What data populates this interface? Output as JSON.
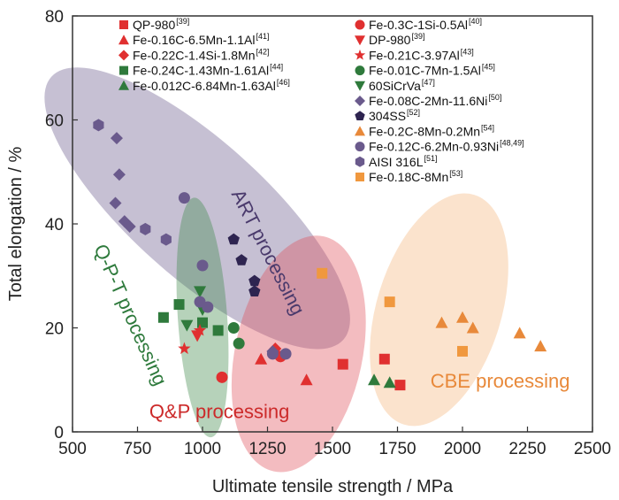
{
  "chart_data": {
    "type": "scatter",
    "title": "",
    "xlabel": "Ultimate tensile strength / MPa",
    "ylabel": "Total elongation / %",
    "xlim": [
      500,
      2500
    ],
    "ylim": [
      0,
      80
    ],
    "xticks": [
      500,
      750,
      1000,
      1250,
      1500,
      1750,
      2000,
      2250,
      2500
    ],
    "yticks": [
      0,
      20,
      40,
      60,
      80
    ],
    "grid": false,
    "legend_position": "top-center",
    "regions": [
      {
        "name": "ART processing",
        "color": "#6a5a8c",
        "text_color": "#4a3a6c",
        "cx": 980,
        "cy": 43,
        "rx": 520,
        "ry": 9,
        "angle_deg": 48,
        "label_x": 1230,
        "label_y": 34,
        "label_angle_deg": 63
      },
      {
        "name": "Q-P-T processing",
        "color": "#3f8a4a",
        "text_color": "#2e7a3c",
        "cx": 1000,
        "cy": 22,
        "rx": 190,
        "ry": 5.5,
        "angle_deg": 4,
        "label_x": 700,
        "label_y": 22,
        "label_angle_deg": 66
      },
      {
        "name": "Q&P processing",
        "color": "#e0505a",
        "text_color": "#cc2a2a",
        "cx": 1370,
        "cy": 15,
        "rx": 490,
        "ry": 5.5,
        "angle_deg": -12,
        "label_x": 1065,
        "label_y": 2.6,
        "label_angle_deg": 0
      },
      {
        "name": "CBE processing",
        "color": "#f4b67c",
        "text_color": "#e8893a",
        "cx": 1910,
        "cy": 23.5,
        "rx": 480,
        "ry": 5.5,
        "angle_deg": -17,
        "label_x": 2145,
        "label_y": 8.5,
        "label_angle_deg": 0
      }
    ],
    "series": [
      {
        "name": "QP-980",
        "ref": "[39]",
        "marker": "square",
        "color": "#e03030",
        "points": [
          [
            1540,
            13
          ],
          [
            1700,
            14
          ],
          [
            1760,
            9
          ]
        ]
      },
      {
        "name": "Fe-0.16C-6.5Mn-1.1Al",
        "ref": "[41]",
        "marker": "triangle",
        "color": "#e03030",
        "points": [
          [
            1225,
            14
          ],
          [
            1400,
            10
          ]
        ]
      },
      {
        "name": "Fe-0.22C-1.4Si-1.8Mn",
        "ref": "[42]",
        "marker": "diamond",
        "color": "#e03030",
        "points": [
          [
            1280,
            16
          ]
        ]
      },
      {
        "name": "Fe-0.24C-1.43Mn-1.61Al",
        "ref": "[44]",
        "marker": "square",
        "color": "#2f7a3c",
        "points": [
          [
            850,
            22
          ],
          [
            910,
            24.5
          ],
          [
            1000,
            21
          ],
          [
            1060,
            19.5
          ]
        ]
      },
      {
        "name": "Fe-0.012C-6.84Mn-1.63Al",
        "ref": "[46]",
        "marker": "triangle",
        "color": "#2f7a3c",
        "points": [
          [
            1660,
            10
          ],
          [
            1720,
            9.5
          ]
        ]
      },
      {
        "name": "Fe-0.3C-1Si-0.5Al",
        "ref": "[40]",
        "marker": "circle",
        "color": "#e03030",
        "points": [
          [
            1075,
            10.5
          ],
          [
            1300,
            14.5
          ]
        ]
      },
      {
        "name": "DP-980",
        "ref": "[39]",
        "marker": "tri-down",
        "color": "#e03030",
        "points": [
          [
            980,
            18.5
          ]
        ]
      },
      {
        "name": "Fe-0.21C-3.97Al",
        "ref": "[43]",
        "marker": "star",
        "color": "#e03030",
        "points": [
          [
            930,
            16
          ],
          [
            990,
            19.5
          ]
        ]
      },
      {
        "name": "Fe-0.01C-7Mn-1.5Al",
        "ref": "[45]",
        "marker": "circle",
        "color": "#2f7a3c",
        "points": [
          [
            1120,
            20
          ],
          [
            1140,
            17
          ]
        ]
      },
      {
        "name": "60SiCrVa",
        "ref": "[47]",
        "marker": "tri-down",
        "color": "#2f7a3c",
        "points": [
          [
            990,
            27
          ],
          [
            1000,
            23.5
          ],
          [
            940,
            20.5
          ]
        ]
      },
      {
        "name": "Fe-0.08C-2Mn-11.6Ni",
        "ref": "[50]",
        "marker": "diamond",
        "color": "#6a5a8c",
        "points": [
          [
            670,
            56.5
          ],
          [
            680,
            49.5
          ],
          [
            665,
            44
          ],
          [
            700,
            40.5
          ],
          [
            720,
            39.5
          ],
          [
            1270,
            15.5
          ]
        ]
      },
      {
        "name": "304SS",
        "ref": "[52]",
        "marker": "pentagon",
        "color": "#2e2450",
        "points": [
          [
            1120,
            37
          ],
          [
            1150,
            33
          ],
          [
            1200,
            29
          ],
          [
            1200,
            27
          ]
        ]
      },
      {
        "name": "Fe-0.2C-8Mn-0.2Mn",
        "ref": "[54]",
        "marker": "triangle",
        "color": "#e8893a",
        "points": [
          [
            1920,
            21
          ],
          [
            2000,
            22
          ],
          [
            2040,
            20
          ],
          [
            2220,
            19
          ],
          [
            2300,
            16.5
          ]
        ]
      },
      {
        "name": "Fe-0.12C-6.2Mn-0.93Ni",
        "ref": "[48,49]",
        "marker": "circle",
        "color": "#6a5a8c",
        "points": [
          [
            930,
            45
          ],
          [
            1000,
            32
          ],
          [
            990,
            25
          ],
          [
            1020,
            24
          ],
          [
            1270,
            15
          ],
          [
            1320,
            15
          ]
        ]
      },
      {
        "name": "AISI 316L",
        "ref": "[51]",
        "marker": "hexagon",
        "color": "#6a5a8c",
        "points": [
          [
            600,
            59
          ],
          [
            780,
            39
          ],
          [
            860,
            37
          ]
        ]
      },
      {
        "name": "Fe-0.18C-8Mn",
        "ref": "[53]",
        "marker": "square",
        "color": "#f0983e",
        "points": [
          [
            1460,
            30.5
          ],
          [
            1720,
            25
          ],
          [
            2000,
            15.5
          ]
        ]
      }
    ]
  }
}
